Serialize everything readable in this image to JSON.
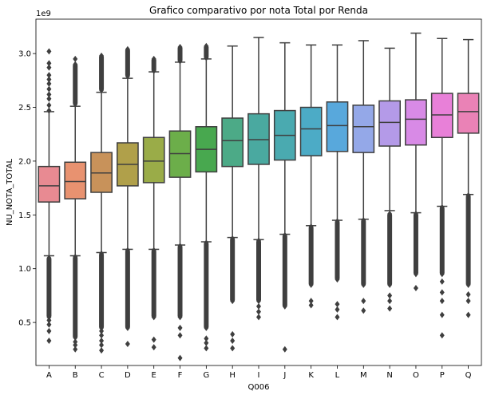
{
  "chart_data": {
    "type": "box",
    "title": "Grafico comparativo por nota Total por Renda",
    "xlabel": "Q006",
    "ylabel": "NU_NOTA_TOTAL",
    "y_scale_label": "1e9",
    "ylim": [
      0.1,
      3.32
    ],
    "yticks": [
      0.5,
      1.0,
      1.5,
      2.0,
      2.5,
      3.0
    ],
    "ytick_labels": [
      "0.5",
      "1.0",
      "1.5",
      "2.0",
      "2.5",
      "3.0"
    ],
    "grid": false,
    "categories": [
      "A",
      "B",
      "C",
      "D",
      "E",
      "F",
      "G",
      "H",
      "I",
      "J",
      "K",
      "L",
      "M",
      "N",
      "O",
      "P",
      "Q"
    ],
    "series": [
      {
        "category": "A",
        "color": "#e88a92",
        "min": 1.12,
        "q1": 1.62,
        "median": 1.77,
        "q3": 1.95,
        "max": 2.46,
        "outliers_high": [
          2.47,
          2.52,
          2.58,
          2.62,
          2.67,
          2.72,
          2.76,
          2.8,
          2.87,
          2.91,
          3.02
        ],
        "outliers_low_range": [
          0.55,
          1.1
        ],
        "outliers_low": [
          0.33,
          0.42,
          0.48,
          0.52
        ]
      },
      {
        "category": "B",
        "color": "#e89270",
        "min": 1.12,
        "q1": 1.65,
        "median": 1.81,
        "q3": 1.99,
        "max": 2.51,
        "outliers_high_range": [
          2.53,
          2.9
        ],
        "outliers_high": [
          2.95
        ],
        "outliers_low_range": [
          0.36,
          1.11
        ],
        "outliers_low": [
          0.25,
          0.29,
          0.32
        ]
      },
      {
        "category": "C",
        "color": "#c8925a",
        "min": 1.15,
        "q1": 1.71,
        "median": 1.89,
        "q3": 2.08,
        "max": 2.64,
        "outliers_high_range": [
          2.66,
          2.98
        ],
        "outliers_low_range": [
          0.45,
          1.14
        ],
        "outliers_low": [
          0.24,
          0.29,
          0.33,
          0.38,
          0.42
        ]
      },
      {
        "category": "D",
        "color": "#b0a04a",
        "min": 1.18,
        "q1": 1.77,
        "median": 1.97,
        "q3": 2.17,
        "max": 2.77,
        "outliers_high_range": [
          2.79,
          3.04
        ],
        "outliers_low_range": [
          0.45,
          1.17
        ],
        "outliers_low": [
          0.3
        ]
      },
      {
        "category": "E",
        "color": "#9aac48",
        "min": 1.18,
        "q1": 1.8,
        "median": 2.0,
        "q3": 2.22,
        "max": 2.83,
        "outliers_high_range": [
          2.84,
          2.95
        ],
        "outliers_low_range": [
          0.55,
          1.17
        ],
        "outliers_low": [
          0.27,
          0.34
        ]
      },
      {
        "category": "F",
        "color": "#6cae4a",
        "min": 1.22,
        "q1": 1.85,
        "median": 2.07,
        "q3": 2.28,
        "max": 2.92,
        "outliers_high_range": [
          2.93,
          3.06
        ],
        "outliers_low_range": [
          0.55,
          1.21
        ],
        "outliers_low": [
          0.17,
          0.38,
          0.45
        ]
      },
      {
        "category": "G",
        "color": "#48a84f",
        "min": 1.25,
        "q1": 1.9,
        "median": 2.11,
        "q3": 2.32,
        "max": 2.95,
        "outliers_high_range": [
          2.96,
          3.07
        ],
        "outliers_low_range": [
          0.45,
          1.24
        ],
        "outliers_low": [
          0.26,
          0.31,
          0.35
        ]
      },
      {
        "category": "H",
        "color": "#4caa87",
        "min": 1.29,
        "q1": 1.95,
        "median": 2.19,
        "q3": 2.4,
        "max": 3.07,
        "outliers_low_range": [
          0.7,
          1.28
        ],
        "outliers_low": [
          0.26,
          0.33,
          0.39
        ]
      },
      {
        "category": "I",
        "color": "#4aa9a0",
        "min": 1.27,
        "q1": 1.97,
        "median": 2.2,
        "q3": 2.44,
        "max": 3.15,
        "outliers_low_range": [
          0.7,
          1.26
        ],
        "outliers_low": [
          0.55,
          0.6,
          0.65
        ]
      },
      {
        "category": "J",
        "color": "#4aaab0",
        "min": 1.32,
        "q1": 2.01,
        "median": 2.24,
        "q3": 2.47,
        "max": 3.1,
        "outliers_low_range": [
          0.65,
          1.31
        ],
        "outliers_low": [
          0.25
        ]
      },
      {
        "category": "K",
        "color": "#4cabc6",
        "min": 1.4,
        "q1": 2.05,
        "median": 2.3,
        "q3": 2.5,
        "max": 3.08,
        "outliers_low_range": [
          0.85,
          1.39
        ],
        "outliers_low": [
          0.66,
          0.7
        ]
      },
      {
        "category": "L",
        "color": "#58a8dc",
        "min": 1.45,
        "q1": 2.09,
        "median": 2.33,
        "q3": 2.55,
        "max": 3.08,
        "outliers_low_range": [
          0.9,
          1.44
        ],
        "outliers_low": [
          0.55,
          0.62,
          0.67
        ]
      },
      {
        "category": "M",
        "color": "#94a8e8",
        "min": 1.46,
        "q1": 2.08,
        "median": 2.32,
        "q3": 2.52,
        "max": 3.12,
        "outliers_low_range": [
          0.85,
          1.45
        ],
        "outliers_low": [
          0.61,
          0.7
        ]
      },
      {
        "category": "N",
        "color": "#b49ae8",
        "min": 1.54,
        "q1": 2.14,
        "median": 2.36,
        "q3": 2.56,
        "max": 3.05,
        "outliers_low_range": [
          0.85,
          1.51
        ],
        "outliers_low": [
          0.63,
          0.7,
          0.75
        ]
      },
      {
        "category": "O",
        "color": "#d88ae6",
        "min": 1.52,
        "q1": 2.15,
        "median": 2.39,
        "q3": 2.57,
        "max": 3.19,
        "outliers_low_range": [
          0.95,
          1.51
        ],
        "outliers_low": [
          0.82
        ]
      },
      {
        "category": "P",
        "color": "#e880d8",
        "min": 1.58,
        "q1": 2.22,
        "median": 2.43,
        "q3": 2.63,
        "max": 3.14,
        "outliers_low_range": [
          0.95,
          1.57
        ],
        "outliers_low": [
          0.38,
          0.57,
          0.7,
          0.78,
          0.88
        ]
      },
      {
        "category": "Q",
        "color": "#ea82b6",
        "min": 1.69,
        "q1": 2.26,
        "median": 2.46,
        "q3": 2.63,
        "max": 3.13,
        "outliers_low_range": [
          0.85,
          1.68
        ],
        "outliers_low": [
          0.57,
          0.7,
          0.76
        ]
      }
    ]
  }
}
